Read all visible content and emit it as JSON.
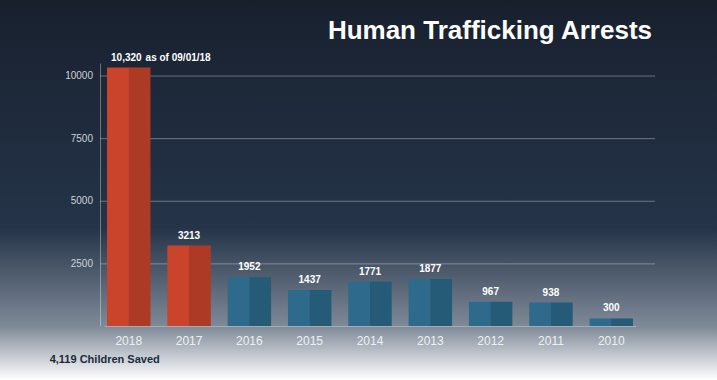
{
  "chart_data": {
    "type": "bar",
    "title": "Human Trafficking Arrests",
    "categories": [
      "2018",
      "2017",
      "2016",
      "2015",
      "2014",
      "2013",
      "2012",
      "2011",
      "2010"
    ],
    "values": [
      10320,
      3213,
      1952,
      1437,
      1771,
      1877,
      967,
      938,
      300
    ],
    "data_labels": true,
    "value_labels": [
      "10,320",
      "3213",
      "1952",
      "1437",
      "1771",
      "1877",
      "967",
      "938",
      "300"
    ],
    "colors": [
      "#c9442b",
      "#c9442b",
      "#2d6a8c",
      "#2d6a8c",
      "#2d6a8c",
      "#2d6a8c",
      "#2d6a8c",
      "#2d6a8c",
      "#2d6a8c"
    ],
    "ylim": [
      0,
      10500
    ],
    "yticks": [
      2500,
      5000,
      7500,
      10000
    ],
    "grid": true,
    "annotations": [
      {
        "text": "as of 09/01/18",
        "category": "2018"
      },
      {
        "text": "4,119 Children Saved"
      }
    ]
  }
}
